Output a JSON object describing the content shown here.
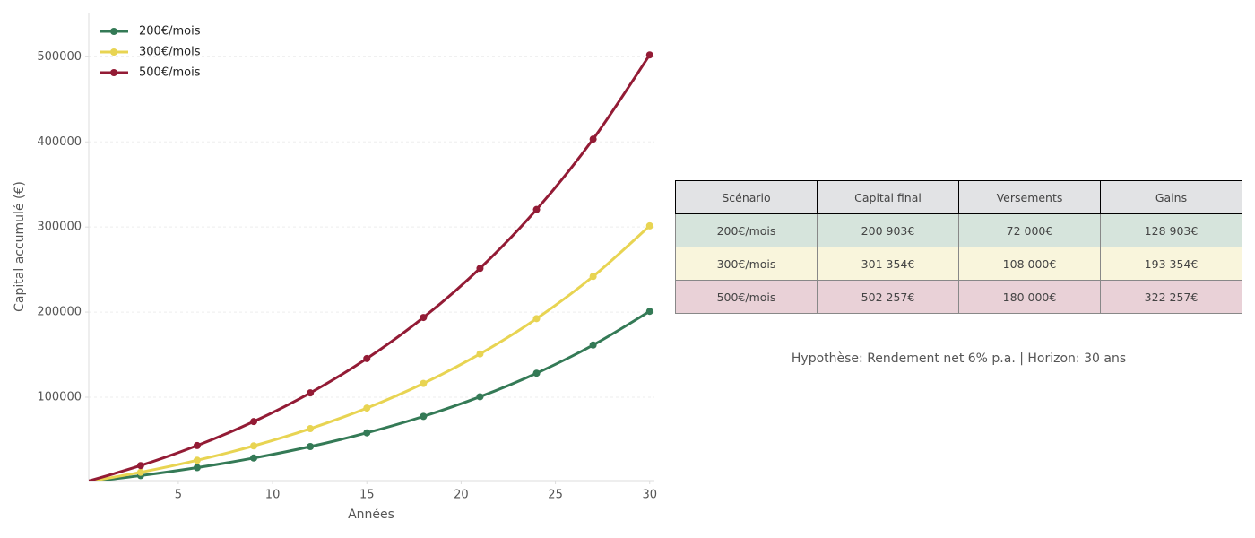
{
  "chart_data": {
    "type": "line",
    "xlabel": "Années",
    "ylabel": "Capital accumulé (€)",
    "x": [
      0,
      3,
      6,
      9,
      12,
      15,
      18,
      21,
      24,
      27,
      30
    ],
    "series": [
      {
        "name": "200€/mois",
        "color": "#347a56",
        "values": [
          0,
          7867,
          17282,
          28548,
          42032,
          58164,
          77468,
          100572,
          128224,
          161304,
          200903
        ]
      },
      {
        "name": "300€/mois",
        "color": "#e8d452",
        "values": [
          0,
          11800,
          25923,
          42822,
          63048,
          87246,
          116202,
          150858,
          192336,
          241956,
          301354
        ]
      },
      {
        "name": "500€/mois",
        "color": "#931b35",
        "values": [
          0,
          19668,
          43205,
          71370,
          105080,
          145410,
          193670,
          251430,
          320560,
          403260,
          502257
        ]
      }
    ],
    "xlim": [
      0.25,
      30.25
    ],
    "xticks": [
      5,
      10,
      15,
      20,
      25,
      30
    ],
    "ylim": [
      2000,
      552000
    ],
    "yticks": [
      100000,
      200000,
      300000,
      400000,
      500000
    ],
    "grid": true,
    "legend": "upper left"
  },
  "table": {
    "header": [
      "Scénario",
      "Capital final",
      "Versements",
      "Gains"
    ],
    "rows": [
      [
        "200€/mois",
        "200 903€",
        "72 000€",
        "128 903€"
      ],
      [
        "300€/mois",
        "301 354€",
        "108 000€",
        "193 354€"
      ],
      [
        "500€/mois",
        "502 257€",
        "180 000€",
        "322 257€"
      ]
    ]
  },
  "note": "Hypothèse: Rendement net 6% p.a. | Horizon: 30 ans"
}
